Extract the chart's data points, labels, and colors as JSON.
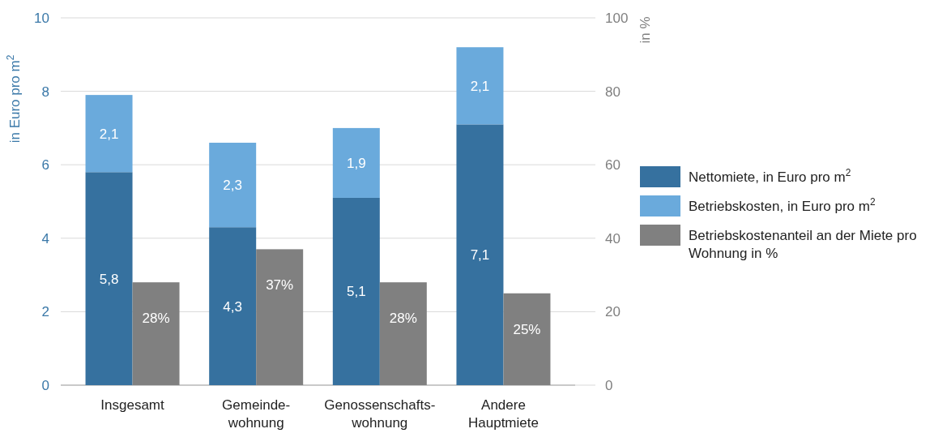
{
  "chart_data": {
    "type": "bar",
    "stacked": true,
    "categories": [
      "Insgesamt",
      "Gemeinde-\nwohnung",
      "Genossenschafts-\nwohnung",
      "Andere\nHauptmiete"
    ],
    "series": [
      {
        "name": "Nettomiete, in Euro pro m$^{2}$",
        "color": "#36719f",
        "values": [
          5.8,
          4.3,
          5.1,
          7.1
        ],
        "value_labels": [
          "5,8",
          "4,3",
          "5,1",
          "7,1"
        ]
      },
      {
        "name": "Betriebskosten, in Euro pro m$^{2}$",
        "color": "#6aaadc",
        "values": [
          2.1,
          2.3,
          1.9,
          2.1
        ],
        "value_labels": [
          "2,1",
          "2,3",
          "1,9",
          "2,1"
        ]
      },
      {
        "name": "Betriebskostenanteil an der Miete pro Wohnung in %",
        "color": "#808080",
        "values": [
          28,
          37,
          28,
          25
        ],
        "axis": "y2",
        "value_labels": [
          "28%",
          "37%",
          "28%",
          "25%"
        ]
      }
    ],
    "ylabel": "in Euro pro m$^{2}$",
    "y2label": "in %",
    "ylim": [
      0,
      10
    ],
    "yticks": [
      0,
      2,
      4,
      6,
      8,
      10
    ],
    "y2lim": [
      0,
      100
    ],
    "y2ticks": [
      0,
      20,
      40,
      60,
      80,
      100
    ],
    "grid": "y",
    "legend": "right"
  }
}
